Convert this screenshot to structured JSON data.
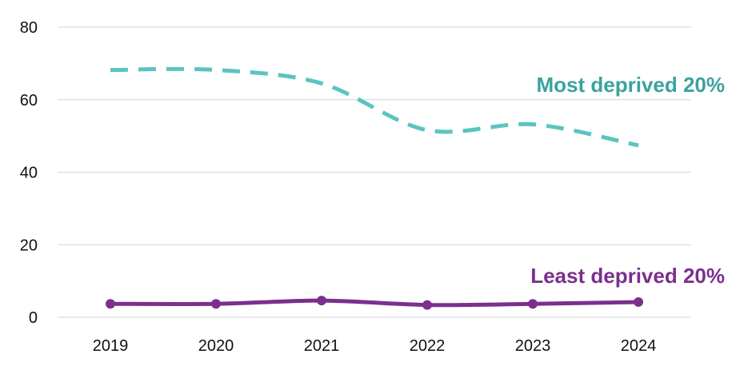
{
  "chart_data": {
    "type": "line",
    "title": "",
    "xlabel": "",
    "ylabel": "",
    "categories": [
      "2019",
      "2020",
      "2021",
      "2022",
      "2023",
      "2024"
    ],
    "ylim": [
      0,
      80
    ],
    "yticks": [
      "0",
      "20",
      "40",
      "60",
      "80"
    ],
    "grid": true,
    "series": [
      {
        "name": "Most deprived 20%",
        "values": [
          68.2,
          68.2,
          64.5,
          51.6,
          53.2,
          47.4
        ],
        "color": "#5bc4bf",
        "line_style": "dashed",
        "markers": false
      },
      {
        "name": "Least deprived 20%",
        "values": [
          3.7,
          3.7,
          4.6,
          3.4,
          3.7,
          4.2
        ],
        "color": "#7b2f8e",
        "line_style": "solid",
        "markers": true
      }
    ],
    "colors": {
      "grid": "#d4d4d4",
      "axis_text": "#111111",
      "most_label": "#3aa39d",
      "least_label": "#7b2f8e"
    }
  }
}
